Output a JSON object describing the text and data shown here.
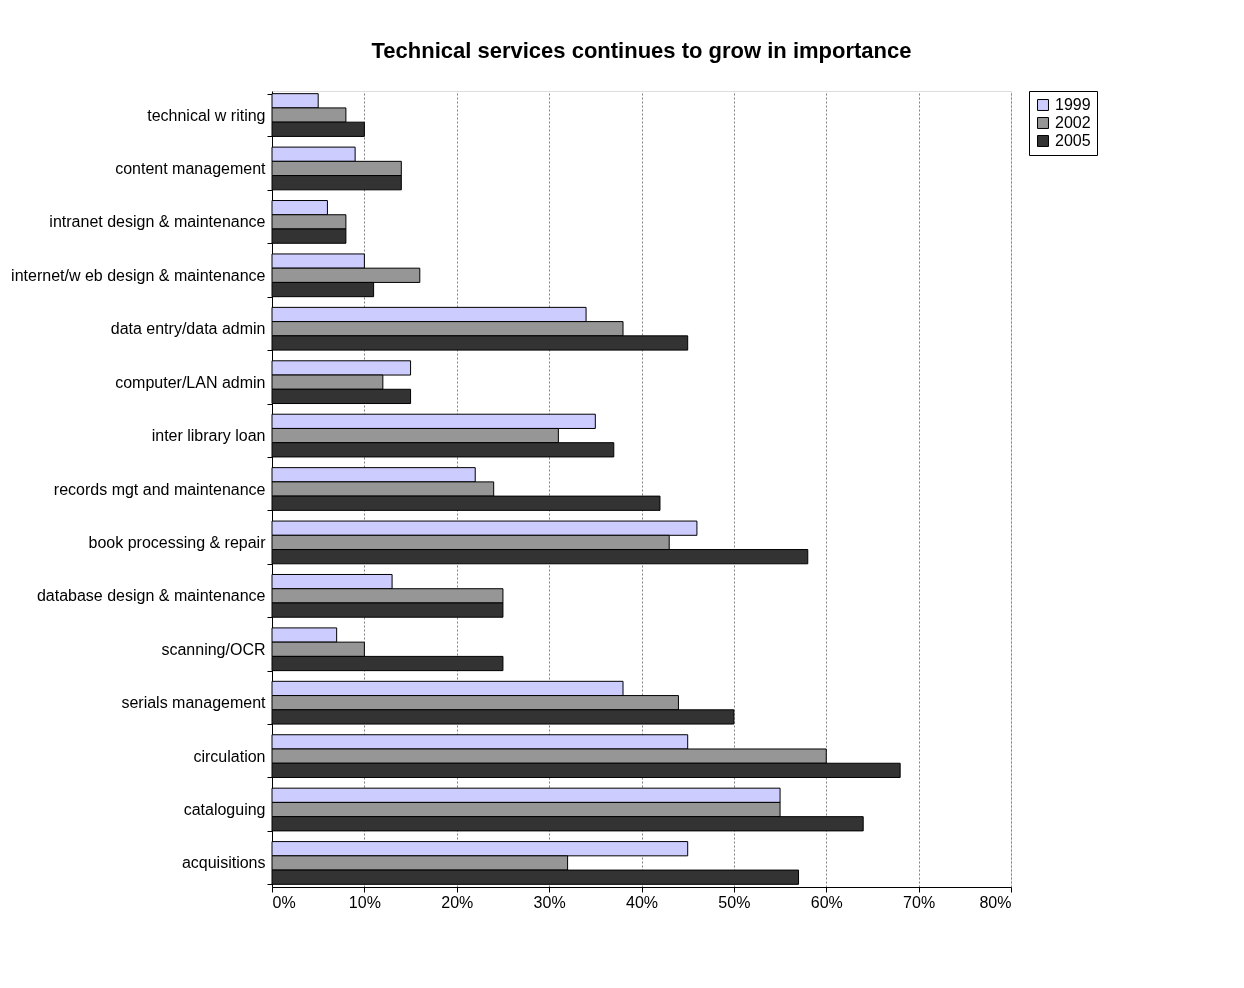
{
  "chart_data": {
    "type": "bar",
    "orientation": "horizontal",
    "title": "Technical services continues to grow in importance",
    "categories": [
      "technical w riting",
      "content management",
      "intranet design & maintenance",
      "internet/w eb design & maintenance",
      "data entry/data admin",
      "computer/LAN admin",
      "inter library loan",
      "records mgt and maintenance",
      "book processing & repair",
      "database design & maintenance",
      "scanning/OCR",
      "serials management",
      "circulation",
      "cataloguing",
      "acquisitions"
    ],
    "series": [
      {
        "name": "1999",
        "color": "#ccccff",
        "values": [
          5,
          9,
          6,
          10,
          34,
          15,
          35,
          22,
          46,
          13,
          7,
          38,
          45,
          55,
          45
        ]
      },
      {
        "name": "2002",
        "color": "#969696",
        "values": [
          8,
          14,
          8,
          16,
          38,
          12,
          31,
          24,
          43,
          25,
          10,
          44,
          60,
          55,
          32
        ]
      },
      {
        "name": "2005",
        "color": "#333333",
        "values": [
          10,
          14,
          8,
          11,
          45,
          15,
          37,
          42,
          58,
          25,
          25,
          50,
          68,
          64,
          57
        ]
      }
    ],
    "xlim": [
      0,
      80
    ],
    "xticks": [
      {
        "value": 0,
        "label": "0%"
      },
      {
        "value": 10,
        "label": "10%"
      },
      {
        "value": 20,
        "label": "20%"
      },
      {
        "value": 30,
        "label": "30%"
      },
      {
        "value": 40,
        "label": "40%"
      },
      {
        "value": 50,
        "label": "50%"
      },
      {
        "value": 60,
        "label": "60%"
      },
      {
        "value": 70,
        "label": "70%"
      },
      {
        "value": 80,
        "label": "80%"
      }
    ],
    "grid": "x",
    "legend": "right"
  }
}
